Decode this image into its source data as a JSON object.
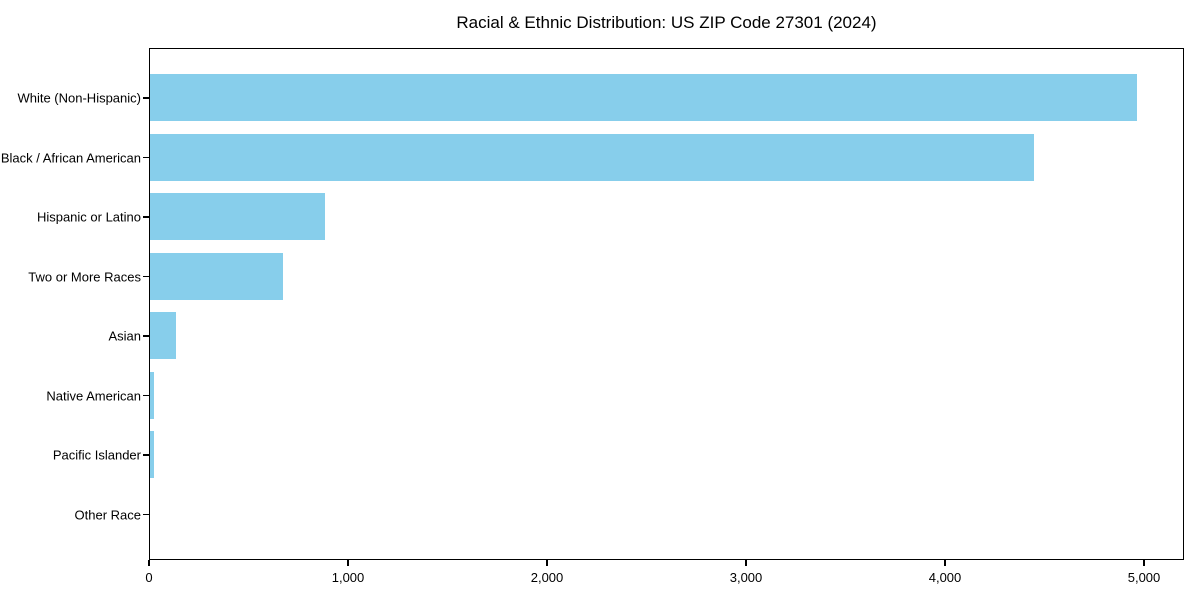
{
  "chart_data": {
    "type": "bar",
    "orientation": "horizontal",
    "title": "Racial & Ethnic Distribution: US ZIP Code 27301 (2024)",
    "categories": [
      "White (Non-Hispanic)",
      "Black / African American",
      "Hispanic or Latino",
      "Two or More Races",
      "Asian",
      "Native American",
      "Pacific Islander",
      "Other Race"
    ],
    "values": [
      4960,
      4440,
      880,
      670,
      130,
      20,
      20,
      0
    ],
    "xlabel": "",
    "ylabel": "",
    "xlim": [
      0,
      5200
    ],
    "x_ticks": [
      0,
      1000,
      2000,
      3000,
      4000,
      5000
    ],
    "x_tick_labels": [
      "0",
      "1,000",
      "2,000",
      "3,000",
      "4,000",
      "5,000"
    ],
    "bar_color": "#87CEEB",
    "axis_color": "#000000",
    "background_color": "#ffffff",
    "grid": false,
    "legend": null
  }
}
